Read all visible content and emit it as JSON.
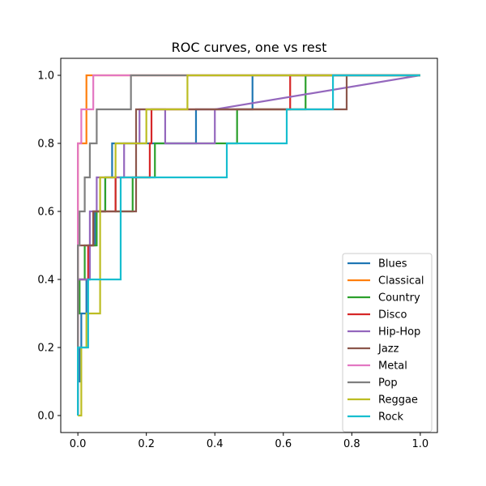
{
  "chart_data": {
    "type": "line",
    "title": "ROC curves, one vs rest",
    "xlabel": "",
    "ylabel": "",
    "xlim": [
      -0.05,
      1.05
    ],
    "ylim": [
      -0.05,
      1.05
    ],
    "x_ticks": [
      0.0,
      0.2,
      0.4,
      0.6,
      0.8,
      1.0
    ],
    "y_ticks": [
      0.0,
      0.2,
      0.4,
      0.6,
      0.8,
      1.0
    ],
    "x_tick_labels": [
      "0.0",
      "0.2",
      "0.4",
      "0.6",
      "0.8",
      "1.0"
    ],
    "y_tick_labels": [
      "0.0",
      "0.2",
      "0.4",
      "0.6",
      "0.8",
      "1.0"
    ],
    "grid": false,
    "legend_position": "lower-right",
    "series": [
      {
        "name": "Blues",
        "color": "#1f77b4",
        "x": [
          0.0,
          0.0,
          0.005,
          0.005,
          0.01,
          0.01,
          0.025,
          0.025,
          0.035,
          0.035,
          0.05,
          0.05,
          0.08,
          0.08,
          0.1,
          0.1,
          0.345,
          0.345,
          0.51,
          0.51,
          1.0
        ],
        "y": [
          0.0,
          0.1,
          0.1,
          0.2,
          0.2,
          0.3,
          0.3,
          0.4,
          0.4,
          0.5,
          0.5,
          0.6,
          0.6,
          0.7,
          0.7,
          0.8,
          0.8,
          0.9,
          0.9,
          1.0,
          1.0
        ]
      },
      {
        "name": "Classical",
        "color": "#ff7f0e",
        "x": [
          0.0,
          0.0,
          0.025,
          0.025,
          1.0
        ],
        "y": [
          0.0,
          0.8,
          0.8,
          1.0,
          1.0
        ]
      },
      {
        "name": "Country",
        "color": "#2ca02c",
        "x": [
          0.0,
          0.0,
          0.005,
          0.005,
          0.02,
          0.02,
          0.055,
          0.055,
          0.08,
          0.08,
          0.11,
          0.11,
          0.16,
          0.16,
          0.225,
          0.225,
          0.465,
          0.465,
          0.665,
          0.665,
          1.0
        ],
        "y": [
          0.0,
          0.3,
          0.3,
          0.4,
          0.4,
          0.5,
          0.5,
          0.6,
          0.6,
          0.7,
          0.7,
          0.6,
          0.6,
          0.7,
          0.7,
          0.8,
          0.8,
          0.9,
          0.9,
          1.0,
          1.0
        ]
      },
      {
        "name": "Disco",
        "color": "#d62728",
        "x": [
          0.0,
          0.0,
          0.03,
          0.03,
          0.045,
          0.045,
          0.11,
          0.11,
          0.21,
          0.21,
          0.215,
          0.215,
          0.62,
          0.62,
          1.0
        ],
        "y": [
          0.0,
          0.4,
          0.4,
          0.5,
          0.5,
          0.6,
          0.6,
          0.7,
          0.7,
          0.8,
          0.8,
          0.9,
          0.9,
          1.0,
          1.0
        ]
      },
      {
        "name": "Hip-Hop",
        "color": "#9467bd",
        "x": [
          0.0,
          0.0,
          0.035,
          0.035,
          0.055,
          0.055,
          0.135,
          0.135,
          0.18,
          0.18,
          0.255,
          0.255,
          0.4,
          0.4,
          1.0
        ],
        "y": [
          0.0,
          0.4,
          0.4,
          0.6,
          0.6,
          0.7,
          0.7,
          0.8,
          0.8,
          0.9,
          0.9,
          0.8,
          0.8,
          0.9,
          1.0
        ]
      },
      {
        "name": "Jazz",
        "color": "#8c564b",
        "x": [
          0.0,
          0.0,
          0.045,
          0.045,
          0.17,
          0.17,
          0.785,
          0.785,
          1.0
        ],
        "y": [
          0.0,
          0.5,
          0.5,
          0.6,
          0.6,
          0.9,
          0.9,
          1.0,
          1.0
        ]
      },
      {
        "name": "Metal",
        "color": "#e377c2",
        "x": [
          0.0,
          0.0,
          0.01,
          0.01,
          0.045,
          0.045,
          1.0
        ],
        "y": [
          0.0,
          0.8,
          0.8,
          0.9,
          0.9,
          1.0,
          1.0
        ]
      },
      {
        "name": "Pop",
        "color": "#7f7f7f",
        "x": [
          0.0,
          0.0,
          0.005,
          0.005,
          0.02,
          0.02,
          0.035,
          0.035,
          0.055,
          0.055,
          0.155,
          0.155,
          1.0
        ],
        "y": [
          0.0,
          0.5,
          0.5,
          0.6,
          0.6,
          0.7,
          0.7,
          0.8,
          0.8,
          0.9,
          0.9,
          1.0,
          1.0
        ]
      },
      {
        "name": "Reggae",
        "color": "#bcbd22",
        "x": [
          0.0,
          0.0,
          0.01,
          0.01,
          0.025,
          0.025,
          0.065,
          0.065,
          0.11,
          0.11,
          0.2,
          0.2,
          0.32,
          0.32,
          1.0
        ],
        "y": [
          0.0,
          0.0,
          0.0,
          0.2,
          0.2,
          0.3,
          0.3,
          0.7,
          0.7,
          0.8,
          0.8,
          0.9,
          0.9,
          1.0,
          1.0
        ]
      },
      {
        "name": "Rock",
        "color": "#17becf",
        "x": [
          0.0,
          0.0,
          0.03,
          0.03,
          0.045,
          0.045,
          0.125,
          0.125,
          0.435,
          0.435,
          0.61,
          0.61,
          0.745,
          0.745,
          1.0
        ],
        "y": [
          0.0,
          0.2,
          0.2,
          0.4,
          0.4,
          0.4,
          0.4,
          0.7,
          0.7,
          0.8,
          0.8,
          0.9,
          0.9,
          1.0,
          1.0
        ]
      }
    ]
  }
}
